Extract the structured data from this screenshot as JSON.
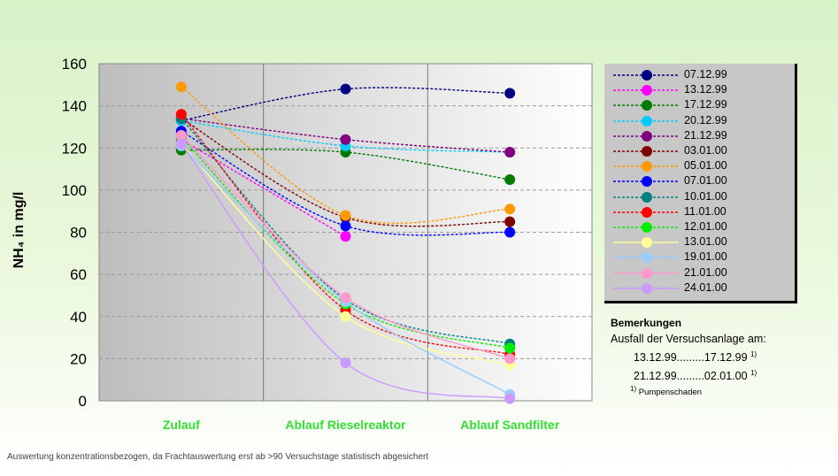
{
  "chart_data": {
    "type": "line",
    "categories": [
      "Zulauf",
      "Ablauf Rieselreaktor",
      "Ablauf Sandfilter"
    ],
    "ylabel": "NH₄ in mg/l",
    "ylim": [
      0,
      160
    ],
    "yticks": [
      0,
      20,
      40,
      60,
      80,
      100,
      120,
      140,
      160
    ],
    "grid": true,
    "legend_position": "right",
    "series": [
      {
        "name": "07.12.99",
        "color": "#000080",
        "values": [
          133,
          148,
          146
        ]
      },
      {
        "name": "13.12.99",
        "color": "#ff00ff",
        "values": [
          124,
          78,
          null
        ]
      },
      {
        "name": "17.12.99",
        "color": "#007a00",
        "values": [
          119,
          118,
          105
        ]
      },
      {
        "name": "20.12.99",
        "color": "#00ccff",
        "values": [
          133,
          121,
          118
        ]
      },
      {
        "name": "21.12.99",
        "color": "#800080",
        "values": [
          134,
          124,
          118
        ]
      },
      {
        "name": "03.01.00",
        "color": "#800000",
        "values": [
          134,
          87,
          85
        ]
      },
      {
        "name": "05.01.00",
        "color": "#ff9900",
        "values": [
          149,
          88,
          91
        ]
      },
      {
        "name": "07.01.00",
        "color": "#0000ff",
        "values": [
          128,
          83,
          80
        ]
      },
      {
        "name": "10.01.00",
        "color": "#008080",
        "values": [
          134,
          48,
          27
        ]
      },
      {
        "name": "11.01.00",
        "color": "#ff0000",
        "values": [
          136,
          43,
          22
        ]
      },
      {
        "name": "12.01.00",
        "color": "#00ee00",
        "values": [
          125,
          46,
          25
        ]
      },
      {
        "name": "13.01.00",
        "color": "#ffff99",
        "values": [
          122,
          40,
          17
        ]
      },
      {
        "name": "19.01.00",
        "color": "#99ccff",
        "values": [
          121,
          47,
          3
        ]
      },
      {
        "name": "21.01.00",
        "color": "#ff99cc",
        "values": [
          126,
          49,
          20
        ]
      },
      {
        "name": "24.01.00",
        "color": "#cc99ff",
        "values": [
          122,
          18,
          1
        ]
      }
    ]
  },
  "remarks": {
    "title": "Bemerkungen",
    "line1": "Ausfall der Versuchsanlage am:",
    "entry1": "13.12.99.........17.12.99",
    "entry2": "21.12.99.........02.01.00",
    "footnote_mark": "1)",
    "footnote": "Pumpenschaden"
  },
  "footer_note": "Auswertung konzentrationsbezogen, da Frachtauswertung erst ab >90 Versuchstage statistisch abgesichert"
}
